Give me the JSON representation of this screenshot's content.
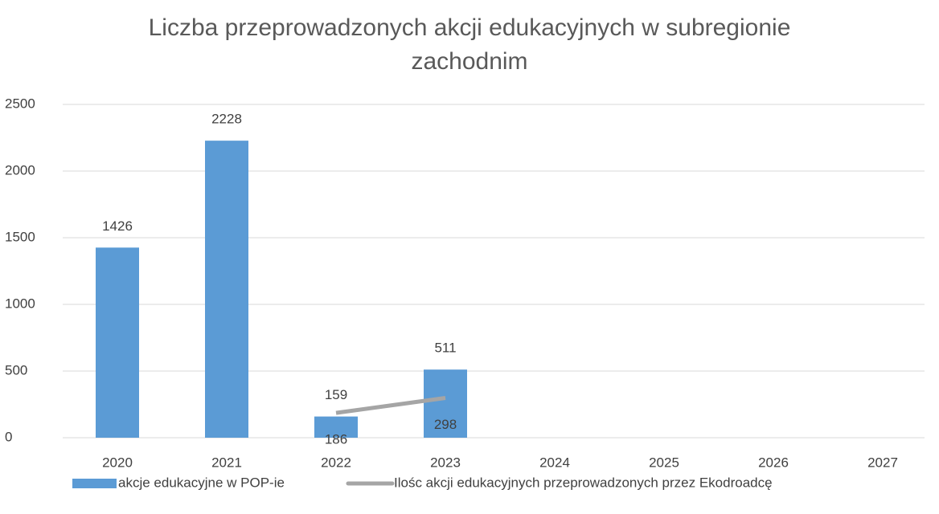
{
  "chart_data": {
    "type": "bar+line",
    "title": "Liczba przeprowadzonych akcji edukacyjnych w subregionie zachodnim",
    "categories": [
      "2020",
      "2021",
      "2022",
      "2023",
      "2024",
      "2025",
      "2026",
      "2027"
    ],
    "series": [
      {
        "name": "akcje edukacyjne w POP-ie",
        "type": "bar",
        "color": "#5b9bd5",
        "values": [
          1426,
          2228,
          159,
          511,
          null,
          null,
          null,
          null
        ]
      },
      {
        "name": "Ilośc akcji  edukacyjnych przeprowadzonych przez Ekodroadcę",
        "type": "line",
        "color": "#a5a5a5",
        "values": [
          null,
          null,
          186,
          298,
          null,
          null,
          null,
          null
        ]
      }
    ],
    "ylim": [
      0,
      2500
    ],
    "yticks": [
      0,
      500,
      1000,
      1500,
      2000,
      2500
    ],
    "grid": true,
    "legend": "bottom"
  }
}
